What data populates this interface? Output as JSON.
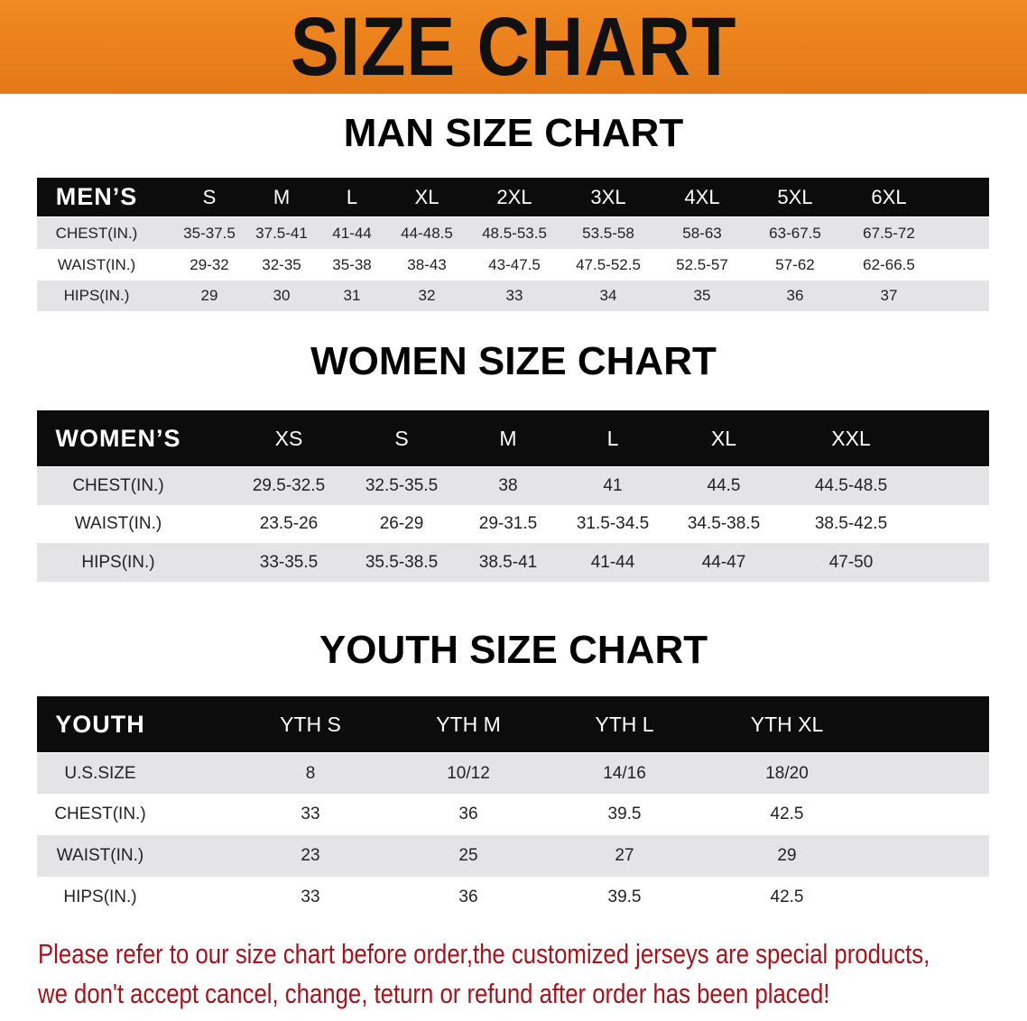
{
  "banner_title": "SIZE CHART",
  "colors": {
    "banner": "#ec8020",
    "header_bg": "#0c0c0c",
    "row_gray": "#e4e4e6",
    "note_text": "#a3141c"
  },
  "men": {
    "title": "MAN SIZE CHART",
    "columns": [
      "MEN’S",
      "S",
      "M",
      "L",
      "XL",
      "2XL",
      "3XL",
      "4XL",
      "5XL",
      "6XL"
    ],
    "rows": [
      [
        "CHEST(IN.)",
        "35-37.5",
        "37.5-41",
        "41-44",
        "44-48.5",
        "48.5-53.5",
        "53.5-58",
        "58-63",
        "63-67.5",
        "67.5-72"
      ],
      [
        "WAIST(IN.)",
        "29-32",
        "32-35",
        "35-38",
        "38-43",
        "43-47.5",
        "47.5-52.5",
        "52.5-57",
        "57-62",
        "62-66.5"
      ],
      [
        "HIPS(IN.)",
        "29",
        "30",
        "31",
        "32",
        "33",
        "34",
        "35",
        "36",
        "37"
      ]
    ]
  },
  "women": {
    "title": "WOMEN SIZE CHART",
    "columns": [
      "WOMEN’S",
      "XS",
      "S",
      "M",
      "L",
      "XL",
      "XXL"
    ],
    "rows": [
      [
        "CHEST(IN.)",
        "29.5-32.5",
        "32.5-35.5",
        "38",
        "41",
        "44.5",
        "44.5-48.5"
      ],
      [
        "WAIST(IN.)",
        "23.5-26",
        "26-29",
        "29-31.5",
        "31.5-34.5",
        "34.5-38.5",
        "38.5-42.5"
      ],
      [
        "HIPS(IN.)",
        "33-35.5",
        "35.5-38.5",
        "38.5-41",
        "41-44",
        "44-47",
        "47-50"
      ]
    ]
  },
  "youth": {
    "title": "YOUTH SIZE CHART",
    "columns": [
      "YOUTH",
      "YTH S",
      "YTH M",
      "YTH L",
      "YTH XL"
    ],
    "rows": [
      [
        "U.S.SIZE",
        "8",
        "10/12",
        "14/16",
        "18/20"
      ],
      [
        "CHEST(IN.)",
        "33",
        "36",
        "39.5",
        "42.5"
      ],
      [
        "WAIST(IN.)",
        "23",
        "25",
        "27",
        "29"
      ],
      [
        "HIPS(IN.)",
        "33",
        "36",
        "39.5",
        "42.5"
      ]
    ]
  },
  "note": {
    "line1": "Please refer to our size chart before order,the customized jerseys are special products,",
    "line2": "we don't accept cancel, change, teturn or refund after order has been placed!"
  }
}
